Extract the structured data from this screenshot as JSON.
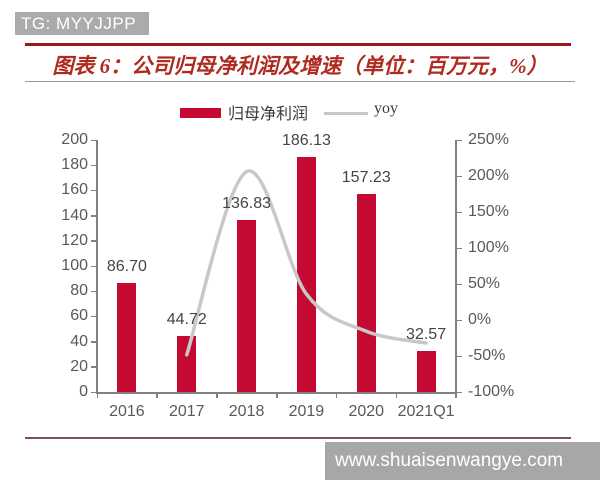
{
  "badge": {
    "label": "TG: MYYJJPP"
  },
  "header": {
    "title": "图表 6：公司归母净利润及增速（单位：百万元，%）"
  },
  "legend": {
    "bar_label": "归母净利润",
    "line_label": "yoy"
  },
  "watermark": {
    "text": "www.shuaisenwangye.com"
  },
  "colors": {
    "bar": "#C40A33",
    "yoy_line": "#C8C8C8",
    "title_red": "#B02A20",
    "top_rule": "#9C1818",
    "under_title_rule": "#9A9A9A",
    "bottom_rule": "#7E5252",
    "axis": "#808080",
    "axis_text": "#595959",
    "badge_bg": "#ABABAB",
    "watermark_bg": "#A7A7A7"
  },
  "chart_data": {
    "type": "bar",
    "title": "公司归母净利润及增速（单位：百万元，%）",
    "categories": [
      "2016",
      "2017",
      "2018",
      "2019",
      "2020",
      "2021Q1"
    ],
    "series": [
      {
        "name": "归母净利润",
        "type": "bar",
        "axis": "left",
        "values": [
          86.7,
          44.72,
          136.83,
          186.13,
          157.23,
          32.57
        ],
        "data_labels": [
          "86.70",
          "44.72",
          "136.83",
          "186.13",
          "157.23",
          "32.57"
        ]
      },
      {
        "name": "yoy",
        "type": "line",
        "axis": "right",
        "values": [
          null,
          -48.4,
          206.0,
          36.0,
          -15.5,
          -32.0
        ]
      }
    ],
    "left_axis": {
      "min": 0,
      "max": 200,
      "step": 20,
      "tick_labels": [
        "0",
        "20",
        "40",
        "60",
        "80",
        "100",
        "120",
        "140",
        "160",
        "180",
        "200"
      ]
    },
    "right_axis": {
      "min": -100,
      "max": 250,
      "step": 50,
      "tick_labels": [
        "-100%",
        "-50%",
        "0%",
        "50%",
        "100%",
        "150%",
        "200%",
        "250%"
      ]
    },
    "grid": false,
    "legend_position": "top"
  }
}
